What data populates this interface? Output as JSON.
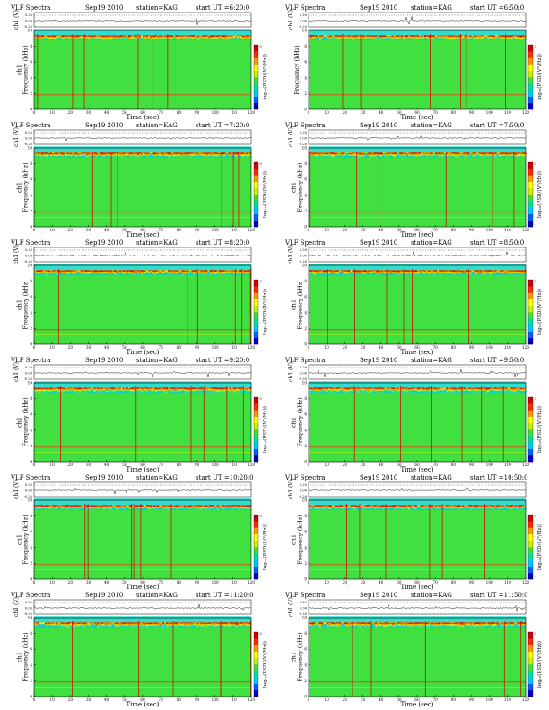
{
  "colors": {
    "colormap": [
      "#0000cc",
      "#0060ff",
      "#00c8ff",
      "#00e0a0",
      "#40e040",
      "#c8f000",
      "#ffff00",
      "#ff9900",
      "#ff2a00",
      "#d40000"
    ],
    "background_band": "#33ddcc",
    "trace": "#222222"
  },
  "chart_data": [
    {
      "type": "heatmap",
      "title": "VLF Spectra",
      "date": "Sep19 2010",
      "station": "station=KAG",
      "start": "start  UT =6:20:0",
      "top_ylabel": "ch1 (V)",
      "top_yticks": [
        "0.20",
        "0.00",
        "-0.20"
      ],
      "xlabel": "Time (sec)",
      "ylabel": "ch1\nFrequency (kHz)",
      "colorbar_label": "log₁₀(PSD/(V²/Hz))",
      "xlim": [
        0,
        120
      ],
      "ylim": [
        0,
        10
      ],
      "xticks": [
        0,
        10,
        20,
        30,
        40,
        50,
        60,
        70,
        80,
        90,
        100,
        110,
        120
      ],
      "yticks": [
        0,
        2,
        4,
        6,
        8,
        10
      ],
      "colorbar_ticks": [
        "0",
        "-",
        "-",
        "-"
      ]
    },
    {
      "type": "heatmap",
      "title": "VLF Spectra",
      "date": "Sep19 2010",
      "station": "station=KAG",
      "start": "start  UT =6:50:0",
      "top_ylabel": "ch1 (V)",
      "top_yticks": [
        "0.20",
        "0.00",
        "-0.20"
      ],
      "xlabel": "Time (sec)",
      "ylabel": "Frequency (kHz)",
      "colorbar_label": "log₁₀(PSD/(V²/Hz))",
      "xlim": [
        0,
        120
      ],
      "ylim": [
        0,
        10
      ],
      "xticks": [
        0,
        10,
        20,
        30,
        40,
        50,
        60,
        70,
        80,
        90,
        100,
        110,
        120
      ],
      "yticks": [
        0,
        2,
        4,
        6,
        8,
        10
      ],
      "colorbar_ticks": [
        "0",
        "-",
        "-",
        "-"
      ]
    },
    {
      "type": "heatmap",
      "title": "VLF Spectra",
      "date": "Sep19 2010",
      "station": "station=KAG",
      "start": "start  UT =7:20:0",
      "top_ylabel": "ch1 (V)",
      "top_yticks": [
        "0.20",
        "0.00",
        "-0.20"
      ],
      "xlabel": "Time (sec)",
      "ylabel": "ch1\nFrequency (kHz)",
      "colorbar_label": "log₁₀(PSD/(V²/Hz))",
      "xlim": [
        0,
        120
      ],
      "ylim": [
        0,
        10
      ],
      "xticks": [
        0,
        10,
        20,
        30,
        40,
        50,
        60,
        70,
        80,
        90,
        100,
        110,
        120
      ],
      "yticks": [
        0,
        2,
        4,
        6,
        8,
        10
      ],
      "colorbar_ticks": [
        "0",
        "-",
        "-",
        "-"
      ]
    },
    {
      "type": "heatmap",
      "title": "VLF Spectra",
      "date": "Sep19 2010",
      "station": "station=KAG",
      "start": "start  UT =7:50:0",
      "top_ylabel": "ch1 (V)",
      "top_yticks": [
        "0.20",
        "0.00",
        "-0.20"
      ],
      "xlabel": "Time (sec)",
      "ylabel": "ch1\nFrequency (kHz)",
      "colorbar_label": "log₁₀(PSD/(V²/Hz))",
      "xlim": [
        0,
        120
      ],
      "ylim": [
        0,
        10
      ],
      "xticks": [
        0,
        10,
        20,
        30,
        40,
        50,
        60,
        70,
        80,
        90,
        100,
        110,
        120
      ],
      "yticks": [
        0,
        2,
        4,
        6,
        8,
        10
      ],
      "colorbar_ticks": [
        "0",
        "-",
        "-",
        "-"
      ]
    },
    {
      "type": "heatmap",
      "title": "VLF Spectra",
      "date": "Sep19 2010",
      "station": "station=KAG",
      "start": "start  UT =8:20:0",
      "top_ylabel": "ch1 (V)",
      "top_yticks": [
        "0.20",
        "0.00",
        "-0.20"
      ],
      "xlabel": "Time (sec)",
      "ylabel": "ch1\nFrequency (kHz)",
      "colorbar_label": "log₁₀(PSD/(V²/Hz))",
      "xlim": [
        0,
        120
      ],
      "ylim": [
        0,
        10
      ],
      "xticks": [
        0,
        10,
        20,
        30,
        40,
        50,
        60,
        70,
        80,
        90,
        100,
        110,
        120
      ],
      "yticks": [
        0,
        2,
        4,
        6,
        8,
        10
      ],
      "colorbar_ticks": [
        "0",
        "-",
        "-",
        "-"
      ]
    },
    {
      "type": "heatmap",
      "title": "VLF Spectra",
      "date": "Sep19 2010",
      "station": "station=KAG",
      "start": "start  UT =8:50:0",
      "top_ylabel": "ch1 (V)",
      "top_yticks": [
        "0.20",
        "0.00",
        "-0.20"
      ],
      "xlabel": "Time (sec)",
      "ylabel": "ch1\nFrequency (kHz)",
      "colorbar_label": "log₁₀(PSD/(V²/Hz))",
      "xlim": [
        0,
        120
      ],
      "ylim": [
        0,
        10
      ],
      "xticks": [
        0,
        10,
        20,
        30,
        40,
        50,
        60,
        70,
        80,
        90,
        100,
        110,
        120
      ],
      "yticks": [
        0,
        2,
        4,
        6,
        8,
        10
      ],
      "colorbar_ticks": [
        "0",
        "-",
        "-",
        "-"
      ]
    },
    {
      "type": "heatmap",
      "title": "VLF Spectra",
      "date": "Sep19 2010",
      "station": "station=KAG",
      "start": "start  UT =9:20:0",
      "top_ylabel": "ch1 (V)",
      "top_yticks": [
        "0.20",
        "0.00",
        "-0.20"
      ],
      "xlabel": "Time (sec)",
      "ylabel": "ch1\nFrequency (kHz)",
      "colorbar_label": "log₁₀(PSD/(V²/Hz))",
      "xlim": [
        0,
        120
      ],
      "ylim": [
        0,
        10
      ],
      "xticks": [
        0,
        10,
        20,
        30,
        40,
        50,
        60,
        70,
        80,
        90,
        100,
        110,
        120
      ],
      "yticks": [
        0,
        2,
        4,
        6,
        8,
        10
      ],
      "colorbar_ticks": [
        "0",
        "-",
        "-",
        "-"
      ]
    },
    {
      "type": "heatmap",
      "title": "VLF Spectra",
      "date": "Sep19 2010",
      "station": "station=KAG",
      "start": "start  UT =9:50:0",
      "top_ylabel": "ch1 (V)",
      "top_yticks": [
        "0.20",
        "0.00",
        "-0.20"
      ],
      "xlabel": "Time (sec)",
      "ylabel": "ch1\nFrequency (kHz)",
      "colorbar_label": "log₁₀(PSD/(V²/Hz))",
      "xlim": [
        0,
        120
      ],
      "ylim": [
        0,
        10
      ],
      "xticks": [
        0,
        10,
        20,
        30,
        40,
        50,
        60,
        70,
        80,
        90,
        100,
        110,
        120
      ],
      "yticks": [
        0,
        2,
        4,
        6,
        8,
        10
      ],
      "colorbar_ticks": [
        "0",
        "-",
        "-",
        "-"
      ]
    },
    {
      "type": "heatmap",
      "title": "VLF Spectra",
      "date": "Sep19 2010",
      "station": "station=KAG",
      "start": "start  UT =10:20:0",
      "top_ylabel": "ch1 (V)",
      "top_yticks": [
        "0.20",
        "0.00",
        "-0.20"
      ],
      "xlabel": "Time (sec)",
      "ylabel": "ch1\nFrequency (kHz)",
      "colorbar_label": "log₁₀(PSD/(V²/Hz))",
      "xlim": [
        0,
        120
      ],
      "ylim": [
        0,
        10
      ],
      "xticks": [
        0,
        10,
        20,
        30,
        40,
        50,
        60,
        70,
        80,
        90,
        100,
        110,
        120
      ],
      "yticks": [
        0,
        2,
        4,
        6,
        8,
        10
      ],
      "colorbar_ticks": [
        "0",
        "-",
        "-",
        "-"
      ]
    },
    {
      "type": "heatmap",
      "title": "VLF Spectra",
      "date": "Sep19 2010",
      "station": "station=KAG",
      "start": "start  UT =10:50:0",
      "top_ylabel": "ch1 (V)",
      "top_yticks": [
        "0.20",
        "0.00",
        "-0.20"
      ],
      "xlabel": "Time (sec)",
      "ylabel": "ch1\nFrequency (kHz)",
      "colorbar_label": "log₁₀(PSD/(V²/Hz))",
      "xlim": [
        0,
        120
      ],
      "ylim": [
        0,
        10
      ],
      "xticks": [
        0,
        10,
        20,
        30,
        40,
        50,
        60,
        70,
        80,
        90,
        100,
        110,
        120
      ],
      "yticks": [
        0,
        2,
        4,
        6,
        8,
        10
      ],
      "colorbar_ticks": [
        "0",
        "-",
        "-",
        "-"
      ]
    },
    {
      "type": "heatmap",
      "title": "VLF Spectra",
      "date": "Sep19 2010",
      "station": "station=KAG",
      "start": "start  UT =11:20:0",
      "top_ylabel": "ch1 (V)",
      "top_yticks": [
        "0.20",
        "0.00",
        "-0.20"
      ],
      "xlabel": "Time (sec)",
      "ylabel": "ch1\nFrequency (kHz)",
      "colorbar_label": "log₁₀(PSD/(V²/Hz))",
      "xlim": [
        0,
        120
      ],
      "ylim": [
        0,
        10
      ],
      "xticks": [
        0,
        10,
        20,
        30,
        40,
        50,
        60,
        70,
        80,
        90,
        100,
        110,
        120
      ],
      "yticks": [
        0,
        2,
        4,
        6,
        8,
        10
      ],
      "colorbar_ticks": [
        "0",
        "-",
        "-",
        "-"
      ]
    },
    {
      "type": "heatmap",
      "title": "VLF Spectra",
      "date": "Sep19 2010",
      "station": "station=KAG",
      "start": "start  UT =11:50:0",
      "top_ylabel": "ch1 (V)",
      "top_yticks": [
        "0.20",
        "0.00",
        "-0.20"
      ],
      "xlabel": "Time (sec)",
      "ylabel": "ch1\nFrequency (kHz)",
      "colorbar_label": "log₁₀(PSD/(V²/Hz))",
      "xlim": [
        0,
        120
      ],
      "ylim": [
        0,
        10
      ],
      "xticks": [
        0,
        10,
        20,
        30,
        40,
        50,
        60,
        70,
        80,
        90,
        100,
        110,
        120
      ],
      "yticks": [
        0,
        2,
        4,
        6,
        8,
        10
      ],
      "colorbar_ticks": [
        "0",
        "-",
        "-",
        "-"
      ]
    }
  ]
}
